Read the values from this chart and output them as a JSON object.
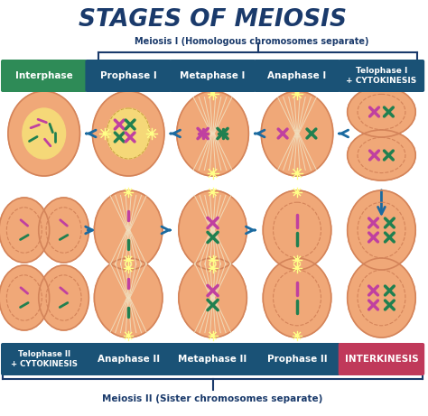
{
  "title": "STAGES OF MEIOSIS",
  "title_color": "#1a3a6b",
  "bg_color": "#ffffff",
  "subtitle_top": "Meiosis I (Homologous chromosomes separate)",
  "subtitle_bottom": "Meiosis II (Sister chromosomes separate)",
  "subtitle_color": "#1a3a6b",
  "header_row1": [
    "Interphase",
    "Prophase I",
    "Metaphase I",
    "Anaphase I",
    "Telophase I\n+ CYTOKINESIS"
  ],
  "header_row2": [
    "Telophase II\n+ CYTOKINESIS",
    "Anaphase II",
    "Metaphase II",
    "Prophase II",
    "INTERKINESIS"
  ],
  "header_color_green": "#2e8b57",
  "header_color_teal": "#1a5276",
  "header_color_pink": "#c0395a",
  "cell_outer": "#f0a878",
  "cell_inner": "#f5c8a0",
  "nucleus_color": "#f5d878",
  "spindle_color": "#f0e0c0",
  "star_color": "#ffff88",
  "arrow_color": "#1a6aa0",
  "brace_color": "#1a3a6b",
  "chrom_purple": "#c040a0",
  "chrom_green": "#208050",
  "fig_width": 4.74,
  "fig_height": 4.61,
  "dpi": 100
}
